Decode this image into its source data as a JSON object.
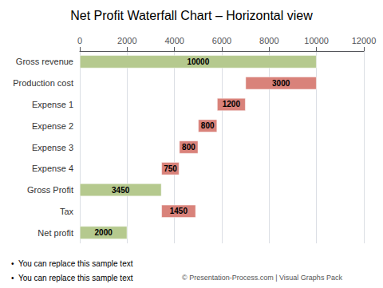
{
  "chart_data": {
    "type": "bar",
    "orientation": "horizontal",
    "title": "Net Profit Waterfall Chart – Horizontal view",
    "categories": [
      "Gross revenue",
      "Production cost",
      "Expense 1",
      "Expense 2",
      "Expense 3",
      "Expense 4",
      "Gross Profit",
      "Tax",
      "Net profit"
    ],
    "values": [
      10000,
      3000,
      1200,
      800,
      800,
      750,
      3450,
      1450,
      2000
    ],
    "starts": [
      0,
      7000,
      5800,
      5000,
      4200,
      3450,
      0,
      3450,
      0
    ],
    "colors": [
      "#b5c98e",
      "#d9827a",
      "#d9827a",
      "#d9827a",
      "#d9827a",
      "#d9827a",
      "#b5c98e",
      "#d9827a",
      "#b5c98e"
    ],
    "xlim": [
      0,
      12000
    ],
    "xticks": [
      0,
      2000,
      4000,
      6000,
      8000,
      10000,
      12000
    ],
    "grid": true,
    "data_labels": true,
    "annotations": [
      "•  You can replace this sample text",
      "•  You can replace this sample text",
      "© Presentation-Process.com | Visual Graphs Pack"
    ]
  }
}
